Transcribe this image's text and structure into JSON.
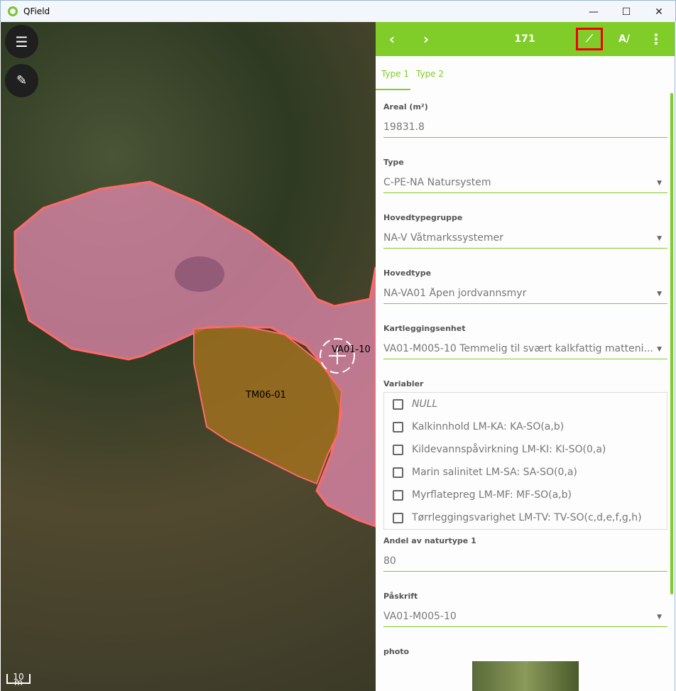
{
  "window": {
    "title": "QField",
    "minimize": "—",
    "maximize": "☐",
    "close": "✕"
  },
  "map": {
    "features": [
      {
        "label": "VA01-10",
        "color": "#e68ab0"
      },
      {
        "label": "TM06-01",
        "color": "#b07a28"
      }
    ],
    "scale_label": "10 m"
  },
  "toolbar": {
    "prev": "‹",
    "next": "›",
    "feature_id": "171",
    "accent": "#80cc28"
  },
  "tabs": [
    {
      "label": "Type 1",
      "active": true
    },
    {
      "label": "Type 2",
      "active": false
    }
  ],
  "fields": [
    {
      "label": "Areal (m²)",
      "value": "19831.8"
    },
    {
      "label": "Type",
      "value": "C-PE-NA Natursystem"
    },
    {
      "label": "Hovedtypegruppe",
      "value": "NA-V Våtmarkssystemer"
    },
    {
      "label": "Hovedtype",
      "value": "NA-VA01 Åpen jordvannsmyr"
    },
    {
      "label": "Kartleggingsenhet",
      "value": "VA01-M005-10 Temmelig til svært kalkfattig matteni..."
    }
  ],
  "variabler": {
    "label": "Variabler",
    "options": [
      "NULL",
      "Kalkinnhold LM-KA: KA-SO(a,b)",
      "Kildevannspåvirkning LM-KI: KI-SO(0,a)",
      "Marin salinitet LM-SA: SA-SO(0,a)",
      "Myrflatepreg LM-MF: MF-SO(a,b)",
      "Tørrleggingsvarighet LM-TV: TV-SO(c,d,e,f,g,h)"
    ]
  },
  "andel": {
    "label": "Andel av naturtype 1",
    "value": "80"
  },
  "paskrift": {
    "label": "Påskrift",
    "value": "VA01-M005-10"
  },
  "photo": {
    "label": "photo"
  }
}
